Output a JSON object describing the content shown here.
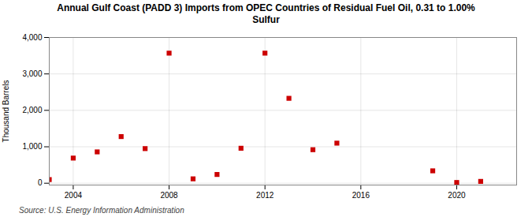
{
  "chart_data": {
    "type": "scatter",
    "title": "Annual Gulf Coast (PADD 3) Imports from OPEC Countries of Residual Fuel Oil, 0.31 to 1.00%\nSulfur",
    "ylabel": "Thousand Barrels",
    "source": "Source: U.S. Energy Information Administration",
    "x": [
      2003,
      2004,
      2005,
      2006,
      2007,
      2008,
      2009,
      2010,
      2011,
      2012,
      2013,
      2014,
      2015,
      2019,
      2020,
      2021
    ],
    "values": [
      100,
      690,
      860,
      1280,
      950,
      3570,
      120,
      240,
      960,
      3570,
      2330,
      920,
      1100,
      340,
      20,
      50
    ],
    "color": "#cc0000",
    "marker": "square",
    "xlim": [
      2003.0,
      2022.5
    ],
    "xticks": [
      2004,
      2008,
      2012,
      2016,
      2020
    ],
    "ylim": [
      -50,
      4000
    ],
    "yticks": [
      0,
      {
        "value": 1000,
        "label": "1,000"
      },
      {
        "value": 2000,
        "label": "2,000"
      },
      {
        "value": 3000,
        "label": "3,000"
      },
      {
        "value": 4000,
        "label": "4,000"
      }
    ],
    "grid": true
  }
}
